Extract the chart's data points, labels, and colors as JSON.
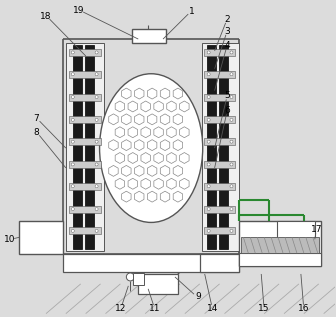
{
  "bg_color": "#dcdcdc",
  "lc": "#555555",
  "dark": "#1a1a1a",
  "green": "#2a8830",
  "fig_w": 3.36,
  "fig_h": 3.17,
  "dpi": 100
}
